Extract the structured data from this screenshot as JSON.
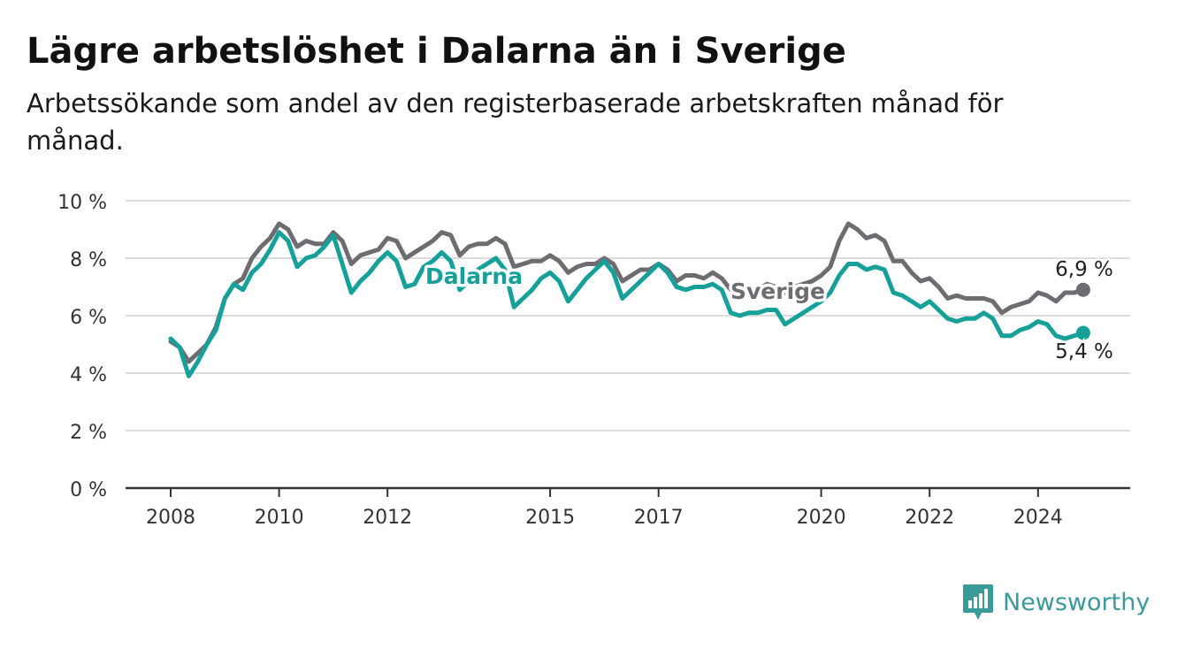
{
  "header": {
    "title": "Lägre arbetslöshet i Dalarna än i Sverige",
    "subtitle": "Arbetssökande som andel av den registerbaserade arbetskraften månad för månad."
  },
  "brand": {
    "name": "Newsworthy",
    "icon": "newsworthy-logo-icon",
    "color": "#3a9a99"
  },
  "chart_data": {
    "type": "line",
    "x_ticks": [
      "2008",
      "2010",
      "2012",
      "2015",
      "2017",
      "2020",
      "2022",
      "2024"
    ],
    "y_ticks": [
      "0 %",
      "2 %",
      "4 %",
      "6 %",
      "8 %",
      "10 %"
    ],
    "ylim": [
      0,
      10
    ],
    "grid": "horizontal",
    "series": [
      {
        "name": "Sverige",
        "color": "#6e6c71",
        "end_label": "6,9 %",
        "points": [
          [
            "2008-01",
            5.1
          ],
          [
            "2008-03",
            4.9
          ],
          [
            "2008-05",
            4.4
          ],
          [
            "2008-07",
            4.7
          ],
          [
            "2008-09",
            5.0
          ],
          [
            "2008-11",
            5.6
          ],
          [
            "2009-01",
            6.6
          ],
          [
            "2009-03",
            7.1
          ],
          [
            "2009-05",
            7.3
          ],
          [
            "2009-07",
            8.0
          ],
          [
            "2009-09",
            8.4
          ],
          [
            "2009-11",
            8.7
          ],
          [
            "2010-01",
            9.2
          ],
          [
            "2010-03",
            9.0
          ],
          [
            "2010-05",
            8.4
          ],
          [
            "2010-07",
            8.6
          ],
          [
            "2010-09",
            8.5
          ],
          [
            "2010-11",
            8.5
          ],
          [
            "2011-01",
            8.9
          ],
          [
            "2011-03",
            8.6
          ],
          [
            "2011-05",
            7.8
          ],
          [
            "2011-07",
            8.1
          ],
          [
            "2011-09",
            8.2
          ],
          [
            "2011-11",
            8.3
          ],
          [
            "2012-01",
            8.7
          ],
          [
            "2012-03",
            8.6
          ],
          [
            "2012-05",
            8.0
          ],
          [
            "2012-07",
            8.2
          ],
          [
            "2012-09",
            8.4
          ],
          [
            "2012-11",
            8.6
          ],
          [
            "2013-01",
            8.9
          ],
          [
            "2013-03",
            8.8
          ],
          [
            "2013-05",
            8.1
          ],
          [
            "2013-07",
            8.4
          ],
          [
            "2013-09",
            8.5
          ],
          [
            "2013-11",
            8.5
          ],
          [
            "2014-01",
            8.7
          ],
          [
            "2014-03",
            8.5
          ],
          [
            "2014-05",
            7.7
          ],
          [
            "2014-07",
            7.8
          ],
          [
            "2014-09",
            7.9
          ],
          [
            "2014-11",
            7.9
          ],
          [
            "2015-01",
            8.1
          ],
          [
            "2015-03",
            7.9
          ],
          [
            "2015-05",
            7.5
          ],
          [
            "2015-07",
            7.7
          ],
          [
            "2015-09",
            7.8
          ],
          [
            "2015-11",
            7.8
          ],
          [
            "2016-01",
            8.0
          ],
          [
            "2016-03",
            7.8
          ],
          [
            "2016-05",
            7.2
          ],
          [
            "2016-07",
            7.4
          ],
          [
            "2016-09",
            7.6
          ],
          [
            "2016-11",
            7.6
          ],
          [
            "2017-01",
            7.8
          ],
          [
            "2017-03",
            7.6
          ],
          [
            "2017-05",
            7.2
          ],
          [
            "2017-07",
            7.4
          ],
          [
            "2017-09",
            7.4
          ],
          [
            "2017-11",
            7.3
          ],
          [
            "2018-01",
            7.5
          ],
          [
            "2018-03",
            7.3
          ],
          [
            "2018-05",
            6.9
          ],
          [
            "2018-07",
            7.0
          ],
          [
            "2018-09",
            7.0
          ],
          [
            "2018-11",
            6.9
          ],
          [
            "2019-01",
            7.1
          ],
          [
            "2019-03",
            7.0
          ],
          [
            "2019-05",
            6.8
          ],
          [
            "2019-07",
            7.0
          ],
          [
            "2019-09",
            7.1
          ],
          [
            "2019-11",
            7.2
          ],
          [
            "2020-01",
            7.4
          ],
          [
            "2020-03",
            7.7
          ],
          [
            "2020-05",
            8.6
          ],
          [
            "2020-07",
            9.2
          ],
          [
            "2020-09",
            9.0
          ],
          [
            "2020-11",
            8.7
          ],
          [
            "2021-01",
            8.8
          ],
          [
            "2021-03",
            8.6
          ],
          [
            "2021-05",
            7.9
          ],
          [
            "2021-07",
            7.9
          ],
          [
            "2021-09",
            7.5
          ],
          [
            "2021-11",
            7.2
          ],
          [
            "2022-01",
            7.3
          ],
          [
            "2022-03",
            7.0
          ],
          [
            "2022-05",
            6.6
          ],
          [
            "2022-07",
            6.7
          ],
          [
            "2022-09",
            6.6
          ],
          [
            "2022-11",
            6.6
          ],
          [
            "2023-01",
            6.6
          ],
          [
            "2023-03",
            6.5
          ],
          [
            "2023-05",
            6.1
          ],
          [
            "2023-07",
            6.3
          ],
          [
            "2023-09",
            6.4
          ],
          [
            "2023-11",
            6.5
          ],
          [
            "2024-01",
            6.8
          ],
          [
            "2024-03",
            6.7
          ],
          [
            "2024-05",
            6.5
          ],
          [
            "2024-07",
            6.8
          ],
          [
            "2024-09",
            6.8
          ],
          [
            "2024-11",
            6.9
          ]
        ]
      },
      {
        "name": "Dalarna",
        "color": "#16a09a",
        "end_label": "5,4 %",
        "points": [
          [
            "2008-01",
            5.2
          ],
          [
            "2008-03",
            4.9
          ],
          [
            "2008-05",
            3.9
          ],
          [
            "2008-07",
            4.4
          ],
          [
            "2008-09",
            5.0
          ],
          [
            "2008-11",
            5.5
          ],
          [
            "2009-01",
            6.6
          ],
          [
            "2009-03",
            7.1
          ],
          [
            "2009-05",
            6.9
          ],
          [
            "2009-07",
            7.5
          ],
          [
            "2009-09",
            7.8
          ],
          [
            "2009-11",
            8.3
          ],
          [
            "2010-01",
            8.9
          ],
          [
            "2010-03",
            8.6
          ],
          [
            "2010-05",
            7.7
          ],
          [
            "2010-07",
            8.0
          ],
          [
            "2010-09",
            8.1
          ],
          [
            "2010-11",
            8.4
          ],
          [
            "2011-01",
            8.8
          ],
          [
            "2011-03",
            7.8
          ],
          [
            "2011-05",
            6.8
          ],
          [
            "2011-07",
            7.2
          ],
          [
            "2011-09",
            7.5
          ],
          [
            "2011-11",
            7.9
          ],
          [
            "2012-01",
            8.2
          ],
          [
            "2012-03",
            7.9
          ],
          [
            "2012-05",
            7.0
          ],
          [
            "2012-07",
            7.1
          ],
          [
            "2012-09",
            7.7
          ],
          [
            "2012-11",
            7.9
          ],
          [
            "2013-01",
            8.2
          ],
          [
            "2013-03",
            7.9
          ],
          [
            "2013-05",
            6.9
          ],
          [
            "2013-07",
            7.2
          ],
          [
            "2013-09",
            7.6
          ],
          [
            "2013-11",
            7.8
          ],
          [
            "2014-01",
            8.0
          ],
          [
            "2014-03",
            7.6
          ],
          [
            "2014-05",
            6.3
          ],
          [
            "2014-07",
            6.6
          ],
          [
            "2014-09",
            6.9
          ],
          [
            "2014-11",
            7.3
          ],
          [
            "2015-01",
            7.5
          ],
          [
            "2015-03",
            7.2
          ],
          [
            "2015-05",
            6.5
          ],
          [
            "2015-07",
            6.9
          ],
          [
            "2015-09",
            7.3
          ],
          [
            "2015-11",
            7.6
          ],
          [
            "2016-01",
            7.9
          ],
          [
            "2016-03",
            7.5
          ],
          [
            "2016-05",
            6.6
          ],
          [
            "2016-07",
            6.9
          ],
          [
            "2016-09",
            7.2
          ],
          [
            "2016-11",
            7.5
          ],
          [
            "2017-01",
            7.8
          ],
          [
            "2017-03",
            7.5
          ],
          [
            "2017-05",
            7.0
          ],
          [
            "2017-07",
            6.9
          ],
          [
            "2017-09",
            7.0
          ],
          [
            "2017-11",
            7.0
          ],
          [
            "2018-01",
            7.1
          ],
          [
            "2018-03",
            6.9
          ],
          [
            "2018-05",
            6.1
          ],
          [
            "2018-07",
            6.0
          ],
          [
            "2018-09",
            6.1
          ],
          [
            "2018-11",
            6.1
          ],
          [
            "2019-01",
            6.2
          ],
          [
            "2019-03",
            6.2
          ],
          [
            "2019-05",
            5.7
          ],
          [
            "2019-07",
            5.9
          ],
          [
            "2019-09",
            6.1
          ],
          [
            "2019-11",
            6.3
          ],
          [
            "2020-01",
            6.5
          ],
          [
            "2020-03",
            6.8
          ],
          [
            "2020-05",
            7.4
          ],
          [
            "2020-07",
            7.8
          ],
          [
            "2020-09",
            7.8
          ],
          [
            "2020-11",
            7.6
          ],
          [
            "2021-01",
            7.7
          ],
          [
            "2021-03",
            7.6
          ],
          [
            "2021-05",
            6.8
          ],
          [
            "2021-07",
            6.7
          ],
          [
            "2021-09",
            6.5
          ],
          [
            "2021-11",
            6.3
          ],
          [
            "2022-01",
            6.5
          ],
          [
            "2022-03",
            6.2
          ],
          [
            "2022-05",
            5.9
          ],
          [
            "2022-07",
            5.8
          ],
          [
            "2022-09",
            5.9
          ],
          [
            "2022-11",
            5.9
          ],
          [
            "2023-01",
            6.1
          ],
          [
            "2023-03",
            5.9
          ],
          [
            "2023-05",
            5.3
          ],
          [
            "2023-07",
            5.3
          ],
          [
            "2023-09",
            5.5
          ],
          [
            "2023-11",
            5.6
          ],
          [
            "2024-01",
            5.8
          ],
          [
            "2024-03",
            5.7
          ],
          [
            "2024-05",
            5.3
          ],
          [
            "2024-07",
            5.2
          ],
          [
            "2024-09",
            5.3
          ],
          [
            "2024-11",
            5.4
          ]
        ]
      }
    ]
  }
}
